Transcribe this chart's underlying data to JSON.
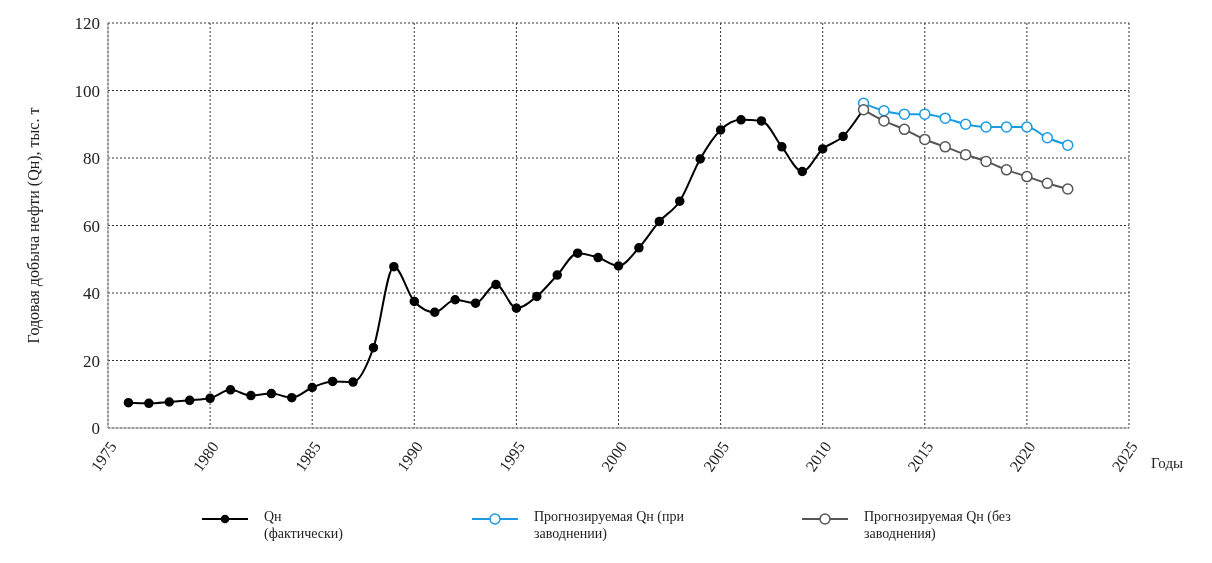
{
  "chart_data": {
    "type": "line",
    "xlabel": "Годы",
    "ylabel": "Годовая добыча нефти (Qн), тыс. т",
    "xlim": [
      1975,
      2025
    ],
    "xticks": [
      1975,
      1980,
      1985,
      1990,
      1995,
      2000,
      2005,
      2010,
      2015,
      2020,
      2025
    ],
    "ylim": [
      0,
      120
    ],
    "yticks": [
      0,
      20,
      40,
      60,
      80,
      100,
      120
    ],
    "grid": true,
    "legend": "bottom",
    "marker": "circle",
    "line_style": "solid",
    "series": [
      {
        "name": "Qн (фактически)",
        "color": "#000000",
        "x": [
          1976,
          1977,
          1978,
          1979,
          1980,
          1981,
          1982,
          1983,
          1984,
          1985,
          1986,
          1987,
          1988,
          1989,
          1990,
          1991,
          1992,
          1993,
          1994,
          1995,
          1996,
          1997,
          1998,
          1999,
          2000,
          2001,
          2002,
          2003,
          2004,
          2005,
          2006,
          2007,
          2008,
          2009,
          2010,
          2011,
          2012
        ],
        "values": [
          7.5,
          7.3,
          7.7,
          8.2,
          8.8,
          11.3,
          9.6,
          10.2,
          9.0,
          12,
          13.8,
          13.6,
          23.8,
          47.8,
          37.5,
          34.3,
          38,
          37,
          42.5,
          35.5,
          39,
          45.3,
          51.8,
          50.5,
          48,
          53.4,
          61.2,
          67.2,
          79.7,
          88.3,
          91.3,
          91,
          83.3,
          76,
          82.7,
          86.4,
          94.5
        ]
      },
      {
        "name": "Прогнозируемая Qн (при заводнении)",
        "color": "#1a9be0",
        "x": [
          2012,
          2013,
          2014,
          2015,
          2016,
          2017,
          2018,
          2019,
          2020,
          2021,
          2022
        ],
        "values": [
          96.2,
          94,
          93,
          93,
          91.8,
          90,
          89.2,
          89.2,
          89.2,
          86,
          83.8
        ]
      },
      {
        "name": "Прогнозируемая Qн (без заводнения)",
        "color": "#555555",
        "x": [
          2012,
          2013,
          2014,
          2015,
          2016,
          2017,
          2018,
          2019,
          2020,
          2021,
          2022
        ],
        "values": [
          94.3,
          91,
          88.5,
          85.5,
          83.3,
          81,
          79,
          76.5,
          74.5,
          72.5,
          70.8
        ]
      }
    ]
  }
}
